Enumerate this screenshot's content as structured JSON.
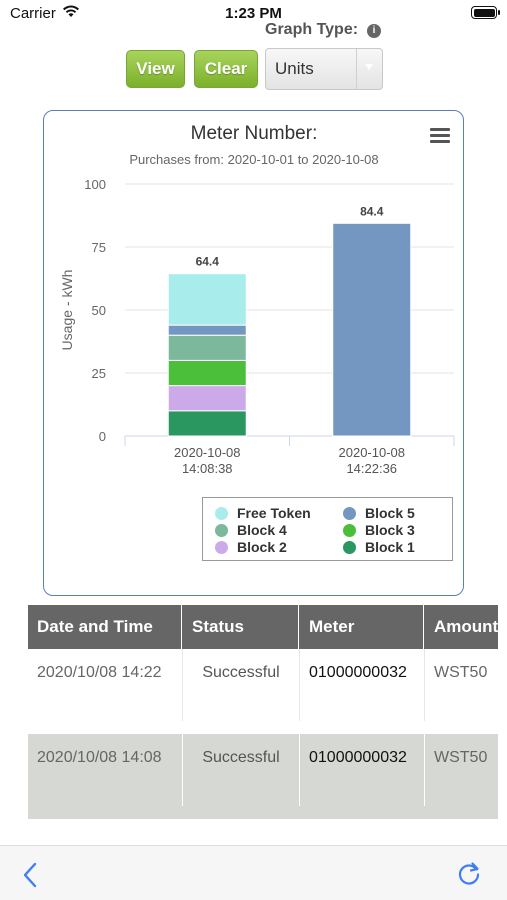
{
  "status_bar": {
    "carrier": "Carrier",
    "time": "1:23 PM",
    "wifi_icon": "wifi-icon",
    "battery_icon": "battery-icon"
  },
  "graph_type": {
    "label": "Graph Type:",
    "icon": "info-icon"
  },
  "controls": {
    "view_label": "View",
    "clear_label": "Clear",
    "select": {
      "value": "Units",
      "arrow_icon": "chevron-down-icon"
    }
  },
  "chart": {
    "menu_icon": "hamburger-menu-icon",
    "legend": [
      {
        "name": "Free Token",
        "color": "#a8ecec"
      },
      {
        "name": "Block 5",
        "color": "#7397c1"
      },
      {
        "name": "Block 4",
        "color": "#7cb99c"
      },
      {
        "name": "Block 3",
        "color": "#4cbf3a"
      },
      {
        "name": "Block 2",
        "color": "#ccaaea"
      },
      {
        "name": "Block 1",
        "color": "#2a9660"
      }
    ]
  },
  "chart_data": {
    "type": "bar",
    "title": "Meter Number:",
    "subtitle": "Purchases from: 2020-10-01 to 2020-10-08",
    "ylabel": "Usage - kWh",
    "xlabel": "",
    "ylim": [
      0,
      100
    ],
    "yticks": [
      0,
      25,
      50,
      75,
      100
    ],
    "stacked": true,
    "grid": true,
    "legend_position": "bottom-right",
    "categories": [
      {
        "line1": "2020-10-08",
        "line2": "14:08:38"
      },
      {
        "line1": "2020-10-08",
        "line2": "14:22:36"
      }
    ],
    "totals": [
      "64.4",
      "84.4"
    ],
    "series": [
      {
        "name": "Block 1",
        "color": "#2a9660",
        "values": [
          10,
          0
        ]
      },
      {
        "name": "Block 2",
        "color": "#ccaaea",
        "values": [
          10,
          0
        ]
      },
      {
        "name": "Block 3",
        "color": "#4cbf3a",
        "values": [
          10,
          0
        ]
      },
      {
        "name": "Block 4",
        "color": "#7cb99c",
        "values": [
          10,
          0
        ]
      },
      {
        "name": "Block 5",
        "color": "#7397c1",
        "values": [
          4,
          84.4
        ]
      },
      {
        "name": "Free Token",
        "color": "#a8ecec",
        "values": [
          20.4,
          0
        ]
      }
    ]
  },
  "table": {
    "headers": [
      "Date and Time",
      "Status",
      "Meter",
      "Amount"
    ],
    "rows": [
      {
        "date": "2020/10/08 14:22",
        "status": "Successful",
        "meter": "01000000032",
        "amount": "WST50"
      },
      {
        "date": "2020/10/08 14:08",
        "status": "Successful",
        "meter": "01000000032",
        "amount": "WST50"
      }
    ]
  },
  "bottom_bar": {
    "back_icon": "chevron-left-icon",
    "refresh_icon": "refresh-icon"
  }
}
